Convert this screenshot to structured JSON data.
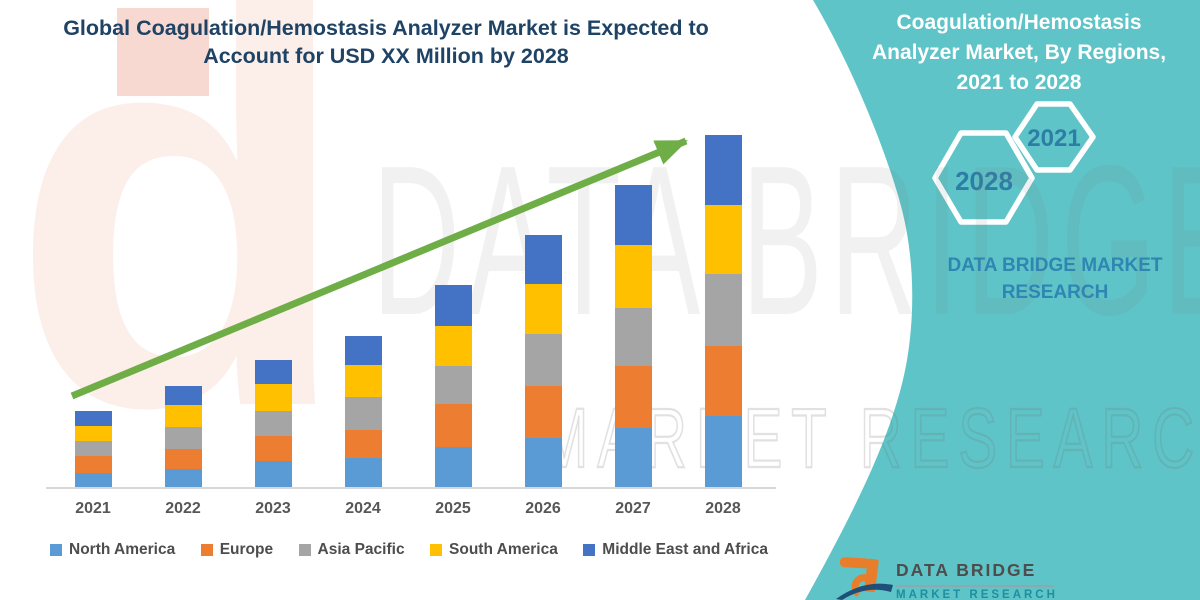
{
  "header": {
    "title": "Global Coagulation/Hemostasis Analyzer Market is Expected to Account for USD XX Million by 2028"
  },
  "chart_data": {
    "type": "bar",
    "stacked": true,
    "title": "Global Coagulation/Hemostasis Analyzer Market is Expected to Account for USD XX Million by 2028",
    "xlabel": "",
    "ylabel": "",
    "y_axis_visible": false,
    "grid": false,
    "legend_position": "bottom",
    "values_are_relative_estimates": true,
    "categories": [
      "2021",
      "2022",
      "2023",
      "2024",
      "2025",
      "2026",
      "2027",
      "2028"
    ],
    "series": [
      {
        "name": "North America",
        "color": "#5B9BD5",
        "values": [
          15,
          19,
          27,
          30,
          41,
          50,
          60,
          72
        ]
      },
      {
        "name": "Europe",
        "color": "#ED7D31",
        "values": [
          17,
          20,
          25,
          28,
          43,
          52,
          62,
          70
        ]
      },
      {
        "name": "Asia Pacific",
        "color": "#A5A5A5",
        "values": [
          15,
          22,
          25,
          33,
          38,
          52,
          58,
          72
        ]
      },
      {
        "name": "South America",
        "color": "#FFC000",
        "values": [
          15,
          22,
          27,
          32,
          40,
          50,
          63,
          69
        ]
      },
      {
        "name": "Middle East and Africa",
        "color": "#4472C4",
        "values": [
          15,
          19,
          24,
          29,
          41,
          49,
          60,
          70
        ]
      }
    ],
    "totals": [
      77,
      102,
      128,
      152,
      203,
      253,
      303,
      353
    ],
    "ylim": [
      0,
      380
    ],
    "trend_arrow": {
      "present": true,
      "color": "#6FAD47",
      "direction": "up-right"
    }
  },
  "side_panel": {
    "title": "Coagulation/Hemostasis Analyzer Market, By Regions, 2021 to 2028",
    "hexagon_years": [
      "2021",
      "2028"
    ],
    "brand": "DATA BRIDGE MARKET RESEARCH",
    "background_color": "#5EC4C7",
    "hexagon_text_color": "#2E7DA6",
    "brand_text_color": "#2F86B2"
  },
  "footer_logo": {
    "brand": "DATA BRIDGE",
    "tagline": "MARKET RESEARCH"
  },
  "watermarks": {
    "chart_text": "DATA BRIDGE",
    "outline_text": "MARKET RESEARCH",
    "logo_letter": "b"
  },
  "colors": {
    "title_text": "#1F4365",
    "axis_line": "#D8D8D8",
    "x_label_text": "#575757",
    "legend_text": "#4D4D4D",
    "arrow_green": "#6FAD47",
    "logo_orange": "#E87E2B",
    "logo_navy": "#1F4E79"
  }
}
